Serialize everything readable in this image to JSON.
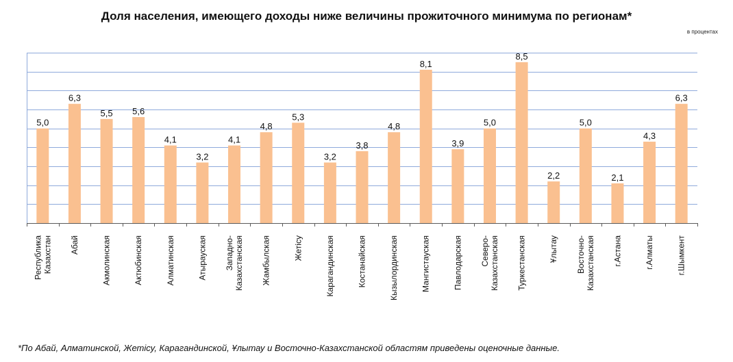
{
  "chart_data": {
    "type": "bar",
    "title": "Доля населения, имеющего доходы ниже величины прожиточного минимума по регионам*",
    "units_note": "в процентах",
    "categories": [
      [
        "Республика",
        "Казахстан"
      ],
      [
        "Абай"
      ],
      [
        "Акмолинская"
      ],
      [
        "Актюбинская"
      ],
      [
        "Алматинская"
      ],
      [
        "Атырауская"
      ],
      [
        "Западно-",
        "Казахстанская"
      ],
      [
        "Жамбылская"
      ],
      [
        "Жетісу"
      ],
      [
        "Карагандинская"
      ],
      [
        "Костанайская"
      ],
      [
        "Кызылординская"
      ],
      [
        "Мангистауская"
      ],
      [
        "Павлодарская"
      ],
      [
        "Северо-",
        "Казахстанская"
      ],
      [
        "Туркестанская"
      ],
      [
        "Ұлытау"
      ],
      [
        "Восточно-",
        "Казахстанская"
      ],
      [
        "г.Астана"
      ],
      [
        "г.Алматы"
      ],
      [
        "г.Шымкент"
      ]
    ],
    "values": [
      5.0,
      6.3,
      5.5,
      5.6,
      4.1,
      3.2,
      4.1,
      4.8,
      5.3,
      3.2,
      3.8,
      4.8,
      8.1,
      3.9,
      5.0,
      8.5,
      2.2,
      5.0,
      2.1,
      4.3,
      6.3
    ],
    "data_labels": [
      "5,0",
      "6,3",
      "5,5",
      "5,6",
      "4,1",
      "3,2",
      "4,1",
      "4,8",
      "5,3",
      "3,2",
      "3,8",
      "4,8",
      "8,1",
      "3,9",
      "5,0",
      "8,5",
      "2,2",
      "5,0",
      "2,1",
      "4,3",
      "6,3"
    ],
    "ylim": [
      0,
      9
    ],
    "grid_step": 1,
    "grid": true,
    "legend": "none",
    "colors": {
      "bar": "#FAC090",
      "grid": "#8EA9DB",
      "axis": "#595959"
    }
  },
  "footnote": "*По Абай,  Алматинской, Жетісу, Карагандинской,  Ұлытау и Восточно-Казахстанской областям приведены оценочные данные."
}
